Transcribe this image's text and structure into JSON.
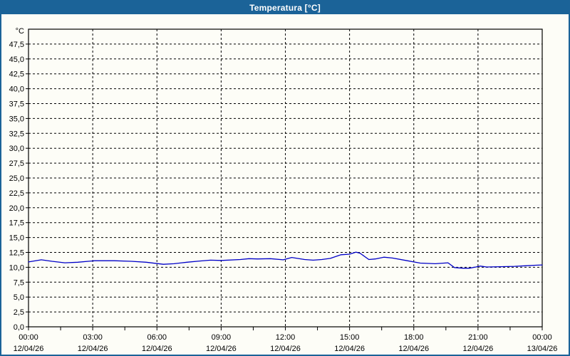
{
  "window": {
    "title": "Temperatura [°C]"
  },
  "colors": {
    "titlebar": "#1B6398",
    "window_border": "#1B6398",
    "background": "#FDFDF7",
    "plot_border": "#000000",
    "grid": "#000000",
    "label": "#000000",
    "line": "#0000C8"
  },
  "chart_data": {
    "type": "line",
    "title": "Temperatura [°C]",
    "unit_label": "°C",
    "ylim": [
      0,
      50
    ],
    "ytick_step": 2.5,
    "ytick_labels": [
      "0,0",
      "2,5",
      "5,0",
      "7,5",
      "10,0",
      "12,5",
      "15,0",
      "17,5",
      "20,0",
      "22,5",
      "25,0",
      "27,5",
      "30,0",
      "32,5",
      "35,0",
      "37,5",
      "40,0",
      "42,5",
      "45,0",
      "47,5"
    ],
    "xlim_hours": [
      0,
      24
    ],
    "xtick_step_hours": 3,
    "minor_xtick_step_hours": 1.5,
    "xtick_labels": [
      {
        "time": "00:00",
        "date": "12/04/26"
      },
      {
        "time": "03:00",
        "date": "12/04/26"
      },
      {
        "time": "06:00",
        "date": "12/04/26"
      },
      {
        "time": "09:00",
        "date": "12/04/26"
      },
      {
        "time": "12:00",
        "date": "12/04/26"
      },
      {
        "time": "15:00",
        "date": "12/04/26"
      },
      {
        "time": "18:00",
        "date": "12/04/26"
      },
      {
        "time": "21:00",
        "date": "12/04/26"
      },
      {
        "time": "00:00",
        "date": "13/04/26"
      }
    ],
    "grid": true,
    "legend": "none",
    "series": [
      {
        "name": "Temperatura",
        "color": "#0000C8",
        "points": [
          [
            0.0,
            10.9
          ],
          [
            0.6,
            11.25
          ],
          [
            1.1,
            11.0
          ],
          [
            1.7,
            10.75
          ],
          [
            2.3,
            10.85
          ],
          [
            3.1,
            11.1
          ],
          [
            4.0,
            11.1
          ],
          [
            4.8,
            11.0
          ],
          [
            5.5,
            10.85
          ],
          [
            6.3,
            10.5
          ],
          [
            6.8,
            10.6
          ],
          [
            7.4,
            10.85
          ],
          [
            8.0,
            11.05
          ],
          [
            8.5,
            11.2
          ],
          [
            9.0,
            11.15
          ],
          [
            9.9,
            11.3
          ],
          [
            10.3,
            11.45
          ],
          [
            10.7,
            11.4
          ],
          [
            11.3,
            11.45
          ],
          [
            11.9,
            11.25
          ],
          [
            12.3,
            11.65
          ],
          [
            12.9,
            11.3
          ],
          [
            13.3,
            11.2
          ],
          [
            13.7,
            11.3
          ],
          [
            14.1,
            11.5
          ],
          [
            14.6,
            12.1
          ],
          [
            15.0,
            12.2
          ],
          [
            15.3,
            12.55
          ],
          [
            15.5,
            12.35
          ],
          [
            15.9,
            11.3
          ],
          [
            16.2,
            11.4
          ],
          [
            16.6,
            11.7
          ],
          [
            17.0,
            11.55
          ],
          [
            17.7,
            11.1
          ],
          [
            18.0,
            10.9
          ],
          [
            18.3,
            10.7
          ],
          [
            19.0,
            10.6
          ],
          [
            19.6,
            10.75
          ],
          [
            19.9,
            9.95
          ],
          [
            20.3,
            9.85
          ],
          [
            20.6,
            9.85
          ],
          [
            20.9,
            10.05
          ],
          [
            21.1,
            10.2
          ],
          [
            21.4,
            10.05
          ],
          [
            22.0,
            10.1
          ],
          [
            22.7,
            10.15
          ],
          [
            23.2,
            10.25
          ],
          [
            23.7,
            10.35
          ],
          [
            24.0,
            10.4
          ]
        ]
      }
    ]
  }
}
